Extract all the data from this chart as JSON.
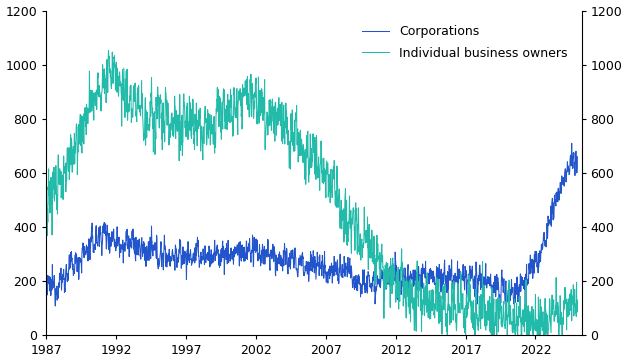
{
  "corp_color": "#2255cc",
  "indiv_color": "#22bbaa",
  "ylim": [
    0,
    1200
  ],
  "xlim_start": 1987.0,
  "xlim_end": 2025.3,
  "xticks": [
    1987,
    1992,
    1997,
    2002,
    2007,
    2012,
    2017,
    2022
  ],
  "yticks": [
    0,
    200,
    400,
    600,
    800,
    1000,
    1200
  ],
  "legend_labels": [
    "Corporations",
    "Individual business owners"
  ],
  "figsize": [
    6.28,
    3.63
  ],
  "dpi": 100
}
